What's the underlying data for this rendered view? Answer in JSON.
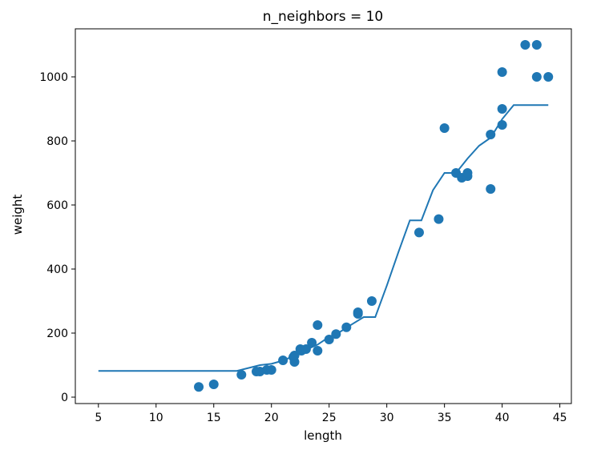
{
  "chart_data": {
    "type": "scatter",
    "title": "n_neighbors = 10",
    "xlabel": "length",
    "ylabel": "weight",
    "xlim": [
      3.0,
      46.0
    ],
    "ylim": [
      -20,
      1150
    ],
    "xticks": [
      5,
      10,
      15,
      20,
      25,
      30,
      35,
      40,
      45
    ],
    "yticks": [
      0,
      200,
      400,
      600,
      800,
      1000
    ],
    "grid": false,
    "legend": "none",
    "color": "#1f77b4",
    "series": [
      {
        "kind": "scatter",
        "points": [
          [
            13.7,
            32
          ],
          [
            15.0,
            40
          ],
          [
            17.4,
            70
          ],
          [
            18.7,
            80
          ],
          [
            19.0,
            80
          ],
          [
            19.6,
            85
          ],
          [
            20.0,
            85
          ],
          [
            21.0,
            115
          ],
          [
            21.9,
            125
          ],
          [
            22.0,
            110
          ],
          [
            22.0,
            130
          ],
          [
            22.5,
            150
          ],
          [
            22.6,
            145
          ],
          [
            23.0,
            150
          ],
          [
            23.5,
            170
          ],
          [
            24.0,
            225
          ],
          [
            24.0,
            145
          ],
          [
            25.0,
            180
          ],
          [
            25.6,
            197
          ],
          [
            26.5,
            218
          ],
          [
            27.5,
            260
          ],
          [
            27.5,
            265
          ],
          [
            28.7,
            300
          ],
          [
            32.8,
            514
          ],
          [
            34.5,
            556
          ],
          [
            35.0,
            840
          ],
          [
            36.0,
            700
          ],
          [
            36.5,
            685
          ],
          [
            37.0,
            690
          ],
          [
            37.0,
            700
          ],
          [
            39.0,
            820
          ],
          [
            39.0,
            650
          ],
          [
            40.0,
            850
          ],
          [
            40.0,
            900
          ],
          [
            40.0,
            1015
          ],
          [
            42.0,
            1100
          ],
          [
            43.0,
            1100
          ],
          [
            43.0,
            1000
          ],
          [
            44.0,
            1000
          ]
        ]
      },
      {
        "kind": "line",
        "points": [
          [
            5,
            82
          ],
          [
            17,
            82
          ],
          [
            19,
            100
          ],
          [
            20,
            104
          ],
          [
            21,
            114
          ],
          [
            22,
            130
          ],
          [
            23,
            148
          ],
          [
            24,
            164
          ],
          [
            25,
            188
          ],
          [
            26,
            205
          ],
          [
            27,
            228
          ],
          [
            28,
            250
          ],
          [
            29,
            250
          ],
          [
            30,
            348
          ],
          [
            31,
            452
          ],
          [
            32,
            552
          ],
          [
            33,
            552
          ],
          [
            34,
            646
          ],
          [
            35,
            700
          ],
          [
            36,
            700
          ],
          [
            37,
            745
          ],
          [
            38,
            785
          ],
          [
            39,
            810
          ],
          [
            40,
            868
          ],
          [
            41,
            912
          ],
          [
            44,
            912
          ]
        ]
      }
    ]
  }
}
